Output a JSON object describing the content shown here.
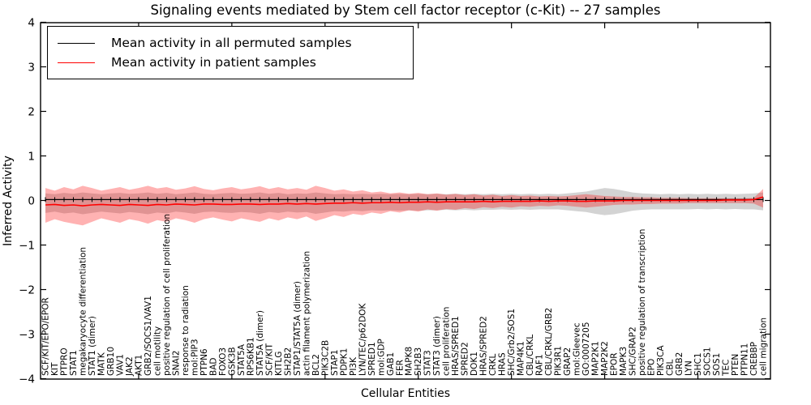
{
  "chart_data": {
    "type": "line",
    "title": "Signaling events mediated by Stem cell factor receptor (c-Kit) -- 27 samples",
    "xlabel": "Cellular Entities",
    "ylabel": "Inferred Activity",
    "ylim": [
      -4,
      4
    ],
    "yticks": [
      -4,
      -3,
      -2,
      -1,
      0,
      1,
      2,
      3,
      4
    ],
    "grid": false,
    "legend_position": "upper left",
    "colors": {
      "permuted_line": "#000000",
      "patient_line": "#ff0000",
      "permuted_band": "#808080",
      "patient_band": "#ff0000"
    },
    "categories": [
      "SCF/KIT/EPO/EPOR",
      "KIT",
      "PTPRO",
      "STAT1",
      "megakaryocyte differentiation",
      "STAT1 (dimer)",
      "MATK",
      "GRB10",
      "VAV1",
      "JAK2",
      "AKT1",
      "GRB2/SOCS1/VAV1",
      "cell motility",
      "positive regulation of cell proliferation",
      "SNAI2",
      "response to radiation",
      "mol:PIP3",
      "PTPN6",
      "BAD",
      "FOXO3",
      "GSK3B",
      "STAT5A",
      "RPS6KB1",
      "STAT5A (dimer)",
      "SCF/KIT",
      "KITLG",
      "SH2B2",
      "STAP1/STAT5A (dimer)",
      "actin filament polymerization",
      "BCL2",
      "PIK3C2B",
      "STAP1",
      "PDPK1",
      "PI3K",
      "LYN/TEC/p62DOK",
      "SPRED1",
      "mol:GDP",
      "GAB1",
      "FER",
      "MAPK8",
      "SH2B3",
      "STAT3",
      "STAT3 (dimer)",
      "cell proliferation",
      "HRAS/SPRED1",
      "SPRED2",
      "DOK1",
      "HRAS/SPRED2",
      "CRKL",
      "HRAS",
      "SHC/Grb2/SOS1",
      "MAP4K1",
      "CBL/CRKL",
      "RAF1",
      "CBL/CRKL/GRB2",
      "PIK3R1",
      "GRAP2",
      "mol:Gleevec",
      "GO:0007205",
      "MAP2K1",
      "MAP2K2",
      "EPOR",
      "MAPK3",
      "SHC/GRAP2",
      "positive regulation of transcription",
      "EPO",
      "PIK3CA",
      "CBL",
      "GRB2",
      "LYN",
      "SHC1",
      "SOCS1",
      "SOS1",
      "TEC",
      "PTEN",
      "PTPN11",
      "CREBBP",
      "cell migration"
    ],
    "series": [
      {
        "name": "Mean activity in all permuted samples",
        "color": "#000000",
        "values": [
          0.02,
          0.02,
          0.02,
          0.02,
          0.02,
          0.02,
          0.02,
          0.02,
          0.02,
          0.02,
          0.02,
          0.02,
          0.02,
          0.02,
          0.02,
          0.02,
          0.02,
          0.02,
          0.02,
          0.02,
          0.02,
          0.02,
          0.02,
          0.02,
          0.02,
          0.02,
          0.02,
          0.02,
          0.02,
          0.02,
          0.02,
          0.02,
          0.02,
          0.02,
          0.02,
          0.02,
          0.02,
          0.02,
          0.02,
          0.02,
          0.02,
          0.02,
          0.02,
          0.02,
          0.02,
          0.02,
          0.02,
          0.02,
          0.02,
          0.02,
          0.02,
          0.02,
          0.02,
          0.02,
          0.02,
          0.02,
          0.02,
          0.02,
          0.02,
          0.02,
          0.02,
          0.02,
          0.02,
          0.02,
          0.02,
          0.02,
          0.02,
          0.02,
          0.02,
          0.02,
          0.02,
          0.02,
          0.02,
          0.02,
          0.02,
          0.02,
          0.02,
          0.02
        ],
        "band_upper": [
          0.16,
          0.14,
          0.17,
          0.15,
          0.18,
          0.16,
          0.14,
          0.16,
          0.17,
          0.15,
          0.16,
          0.18,
          0.15,
          0.17,
          0.14,
          0.16,
          0.18,
          0.15,
          0.14,
          0.16,
          0.17,
          0.15,
          0.16,
          0.18,
          0.15,
          0.17,
          0.14,
          0.16,
          0.15,
          0.18,
          0.16,
          0.14,
          0.15,
          0.14,
          0.15,
          0.14,
          0.15,
          0.14,
          0.15,
          0.14,
          0.15,
          0.14,
          0.15,
          0.14,
          0.15,
          0.14,
          0.15,
          0.14,
          0.15,
          0.14,
          0.15,
          0.14,
          0.15,
          0.14,
          0.15,
          0.14,
          0.16,
          0.18,
          0.2,
          0.24,
          0.28,
          0.26,
          0.22,
          0.18,
          0.16,
          0.15,
          0.14,
          0.15,
          0.14,
          0.15,
          0.14,
          0.15,
          0.14,
          0.15,
          0.14,
          0.15,
          0.16,
          0.18
        ],
        "band_lower": [
          -0.28,
          -0.25,
          -0.29,
          -0.27,
          -0.31,
          -0.28,
          -0.25,
          -0.27,
          -0.29,
          -0.26,
          -0.28,
          -0.31,
          -0.27,
          -0.29,
          -0.25,
          -0.27,
          -0.3,
          -0.26,
          -0.25,
          -0.27,
          -0.28,
          -0.26,
          -0.27,
          -0.3,
          -0.26,
          -0.28,
          -0.25,
          -0.27,
          -0.26,
          -0.3,
          -0.27,
          -0.24,
          -0.25,
          -0.23,
          -0.24,
          -0.22,
          -0.23,
          -0.22,
          -0.23,
          -0.22,
          -0.23,
          -0.22,
          -0.22,
          -0.21,
          -0.22,
          -0.21,
          -0.22,
          -0.21,
          -0.21,
          -0.2,
          -0.21,
          -0.2,
          -0.21,
          -0.2,
          -0.2,
          -0.2,
          -0.22,
          -0.24,
          -0.26,
          -0.3,
          -0.33,
          -0.31,
          -0.27,
          -0.23,
          -0.21,
          -0.2,
          -0.2,
          -0.2,
          -0.2,
          -0.2,
          -0.19,
          -0.2,
          -0.19,
          -0.2,
          -0.19,
          -0.2,
          -0.2,
          -0.22
        ]
      },
      {
        "name": "Mean activity in patient samples",
        "color": "#ff0000",
        "values": [
          -0.1,
          -0.09,
          -0.11,
          -0.1,
          -0.12,
          -0.1,
          -0.09,
          -0.1,
          -0.11,
          -0.09,
          -0.1,
          -0.11,
          -0.09,
          -0.1,
          -0.08,
          -0.09,
          -0.1,
          -0.08,
          -0.08,
          -0.09,
          -0.09,
          -0.08,
          -0.08,
          -0.09,
          -0.08,
          -0.08,
          -0.07,
          -0.08,
          -0.07,
          -0.08,
          -0.07,
          -0.06,
          -0.06,
          -0.05,
          -0.06,
          -0.05,
          -0.05,
          -0.04,
          -0.05,
          -0.04,
          -0.04,
          -0.03,
          -0.04,
          -0.03,
          -0.03,
          -0.03,
          -0.03,
          -0.02,
          -0.03,
          -0.02,
          -0.02,
          -0.02,
          -0.02,
          -0.01,
          -0.02,
          -0.01,
          -0.01,
          -0.02,
          -0.02,
          -0.01,
          -0.01,
          -0.01,
          0.0,
          0.0,
          0.0,
          0.0,
          0.0,
          0.0,
          0.0,
          0.0,
          0.0,
          0.0,
          0.0,
          0.01,
          0.01,
          0.01,
          0.02,
          0.08
        ],
        "band_upper": [
          0.28,
          0.22,
          0.3,
          0.25,
          0.33,
          0.28,
          0.22,
          0.26,
          0.3,
          0.24,
          0.28,
          0.33,
          0.27,
          0.3,
          0.24,
          0.27,
          0.32,
          0.26,
          0.23,
          0.27,
          0.3,
          0.25,
          0.28,
          0.32,
          0.26,
          0.3,
          0.25,
          0.28,
          0.24,
          0.33,
          0.28,
          0.22,
          0.25,
          0.2,
          0.23,
          0.18,
          0.2,
          0.16,
          0.18,
          0.15,
          0.17,
          0.14,
          0.16,
          0.13,
          0.15,
          0.12,
          0.14,
          0.11,
          0.13,
          0.1,
          0.12,
          0.1,
          0.11,
          0.09,
          0.1,
          0.09,
          0.1,
          0.12,
          0.14,
          0.12,
          0.1,
          0.09,
          0.08,
          0.08,
          0.07,
          0.07,
          0.06,
          0.06,
          0.06,
          0.05,
          0.05,
          0.05,
          0.05,
          0.05,
          0.05,
          0.05,
          0.06,
          0.26
        ],
        "band_lower": [
          -0.5,
          -0.42,
          -0.48,
          -0.52,
          -0.56,
          -0.48,
          -0.4,
          -0.45,
          -0.5,
          -0.42,
          -0.46,
          -0.52,
          -0.44,
          -0.48,
          -0.4,
          -0.44,
          -0.5,
          -0.42,
          -0.38,
          -0.43,
          -0.47,
          -0.4,
          -0.44,
          -0.48,
          -0.4,
          -0.45,
          -0.38,
          -0.42,
          -0.36,
          -0.46,
          -0.4,
          -0.33,
          -0.37,
          -0.3,
          -0.33,
          -0.27,
          -0.3,
          -0.24,
          -0.27,
          -0.22,
          -0.25,
          -0.2,
          -0.23,
          -0.19,
          -0.21,
          -0.17,
          -0.19,
          -0.15,
          -0.17,
          -0.14,
          -0.16,
          -0.13,
          -0.14,
          -0.12,
          -0.13,
          -0.11,
          -0.12,
          -0.14,
          -0.16,
          -0.14,
          -0.12,
          -0.1,
          -0.09,
          -0.09,
          -0.08,
          -0.08,
          -0.07,
          -0.07,
          -0.07,
          -0.06,
          -0.06,
          -0.06,
          -0.06,
          -0.06,
          -0.06,
          -0.06,
          -0.07,
          -0.16
        ]
      }
    ]
  }
}
